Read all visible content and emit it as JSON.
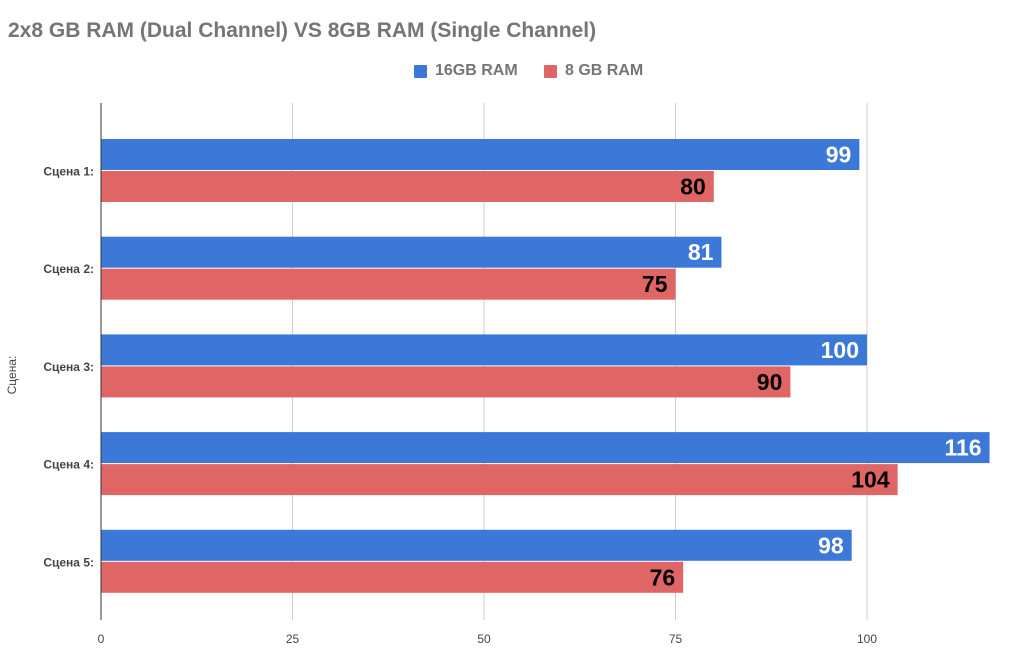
{
  "chart_data": {
    "type": "bar",
    "orientation": "horizontal",
    "title": "2x8 GB RAM (Dual Channel) VS 8GB RAM (Single Channel)",
    "ylabel": "Сцена:",
    "xlabel": "",
    "categories": [
      "Сцена 1:",
      "Сцена 2:",
      "Сцена 3:",
      "Сцена 4:",
      "Сцена 5:"
    ],
    "series": [
      {
        "name": "16GB RAM",
        "color": "#3c78d8",
        "label_color": "#ffffff",
        "values": [
          99,
          81,
          100,
          116,
          98
        ]
      },
      {
        "name": "8 GB RAM",
        "color": "#e06666",
        "label_color": "#000000",
        "values": [
          80,
          75,
          90,
          104,
          76
        ]
      }
    ],
    "xlim": [
      0,
      116
    ],
    "xticks": [
      0,
      25,
      50,
      75,
      100
    ],
    "grid": true,
    "legend_position": "top-center",
    "data_labels": true
  }
}
